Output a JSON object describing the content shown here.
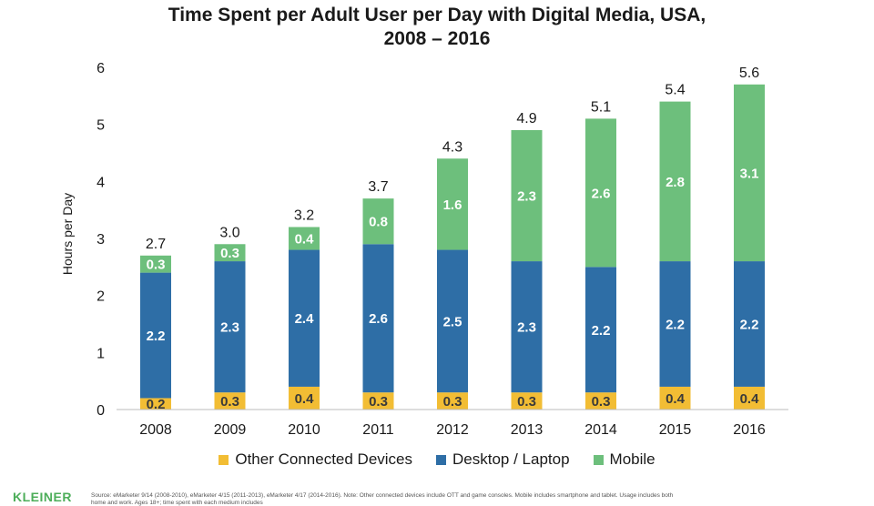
{
  "title_line1": "Time Spent per Adult User per Day with Digital Media, USA,",
  "title_line2": "2008 – 2016",
  "footer": {
    "logo": "KLEINER",
    "source": "Source: eMarketer 9/14 (2008-2010), eMarketer 4/15 (2011-2013), eMarketer 4/17 (2014-2016). Note: Other connected devices include OTT and game consoles. Mobile includes smartphone and tablet. Usage includes both home and work. Ages 18+; time spent with each medium includes"
  },
  "chart_data": {
    "type": "bar",
    "stacked": true,
    "title": "Time Spent per Adult User per Day with Digital Media, USA, 2008 – 2016",
    "ylabel": "Hours per Day",
    "xlabel": "",
    "ylim": [
      0,
      6
    ],
    "yticks": [
      0,
      1,
      2,
      3,
      4,
      5,
      6
    ],
    "grid": false,
    "legend_position": "bottom",
    "categories": [
      "2008",
      "2009",
      "2010",
      "2011",
      "2012",
      "2013",
      "2014",
      "2015",
      "2016"
    ],
    "series": [
      {
        "name": "Other Connected Devices",
        "color": "#f2bd34",
        "values": [
          0.2,
          0.3,
          0.4,
          0.3,
          0.3,
          0.3,
          0.3,
          0.4,
          0.4
        ]
      },
      {
        "name": "Desktop / Laptop",
        "color": "#2e6ea6",
        "values": [
          2.2,
          2.3,
          2.4,
          2.6,
          2.5,
          2.3,
          2.2,
          2.2,
          2.2
        ]
      },
      {
        "name": "Mobile",
        "color": "#6dbf7c",
        "values": [
          0.3,
          0.3,
          0.4,
          0.8,
          1.6,
          2.3,
          2.6,
          2.8,
          3.1
        ]
      }
    ],
    "totals": [
      "2.7",
      "3.0",
      "3.2",
      "3.7",
      "4.3",
      "4.9",
      "5.1",
      "5.4",
      "5.6"
    ]
  }
}
